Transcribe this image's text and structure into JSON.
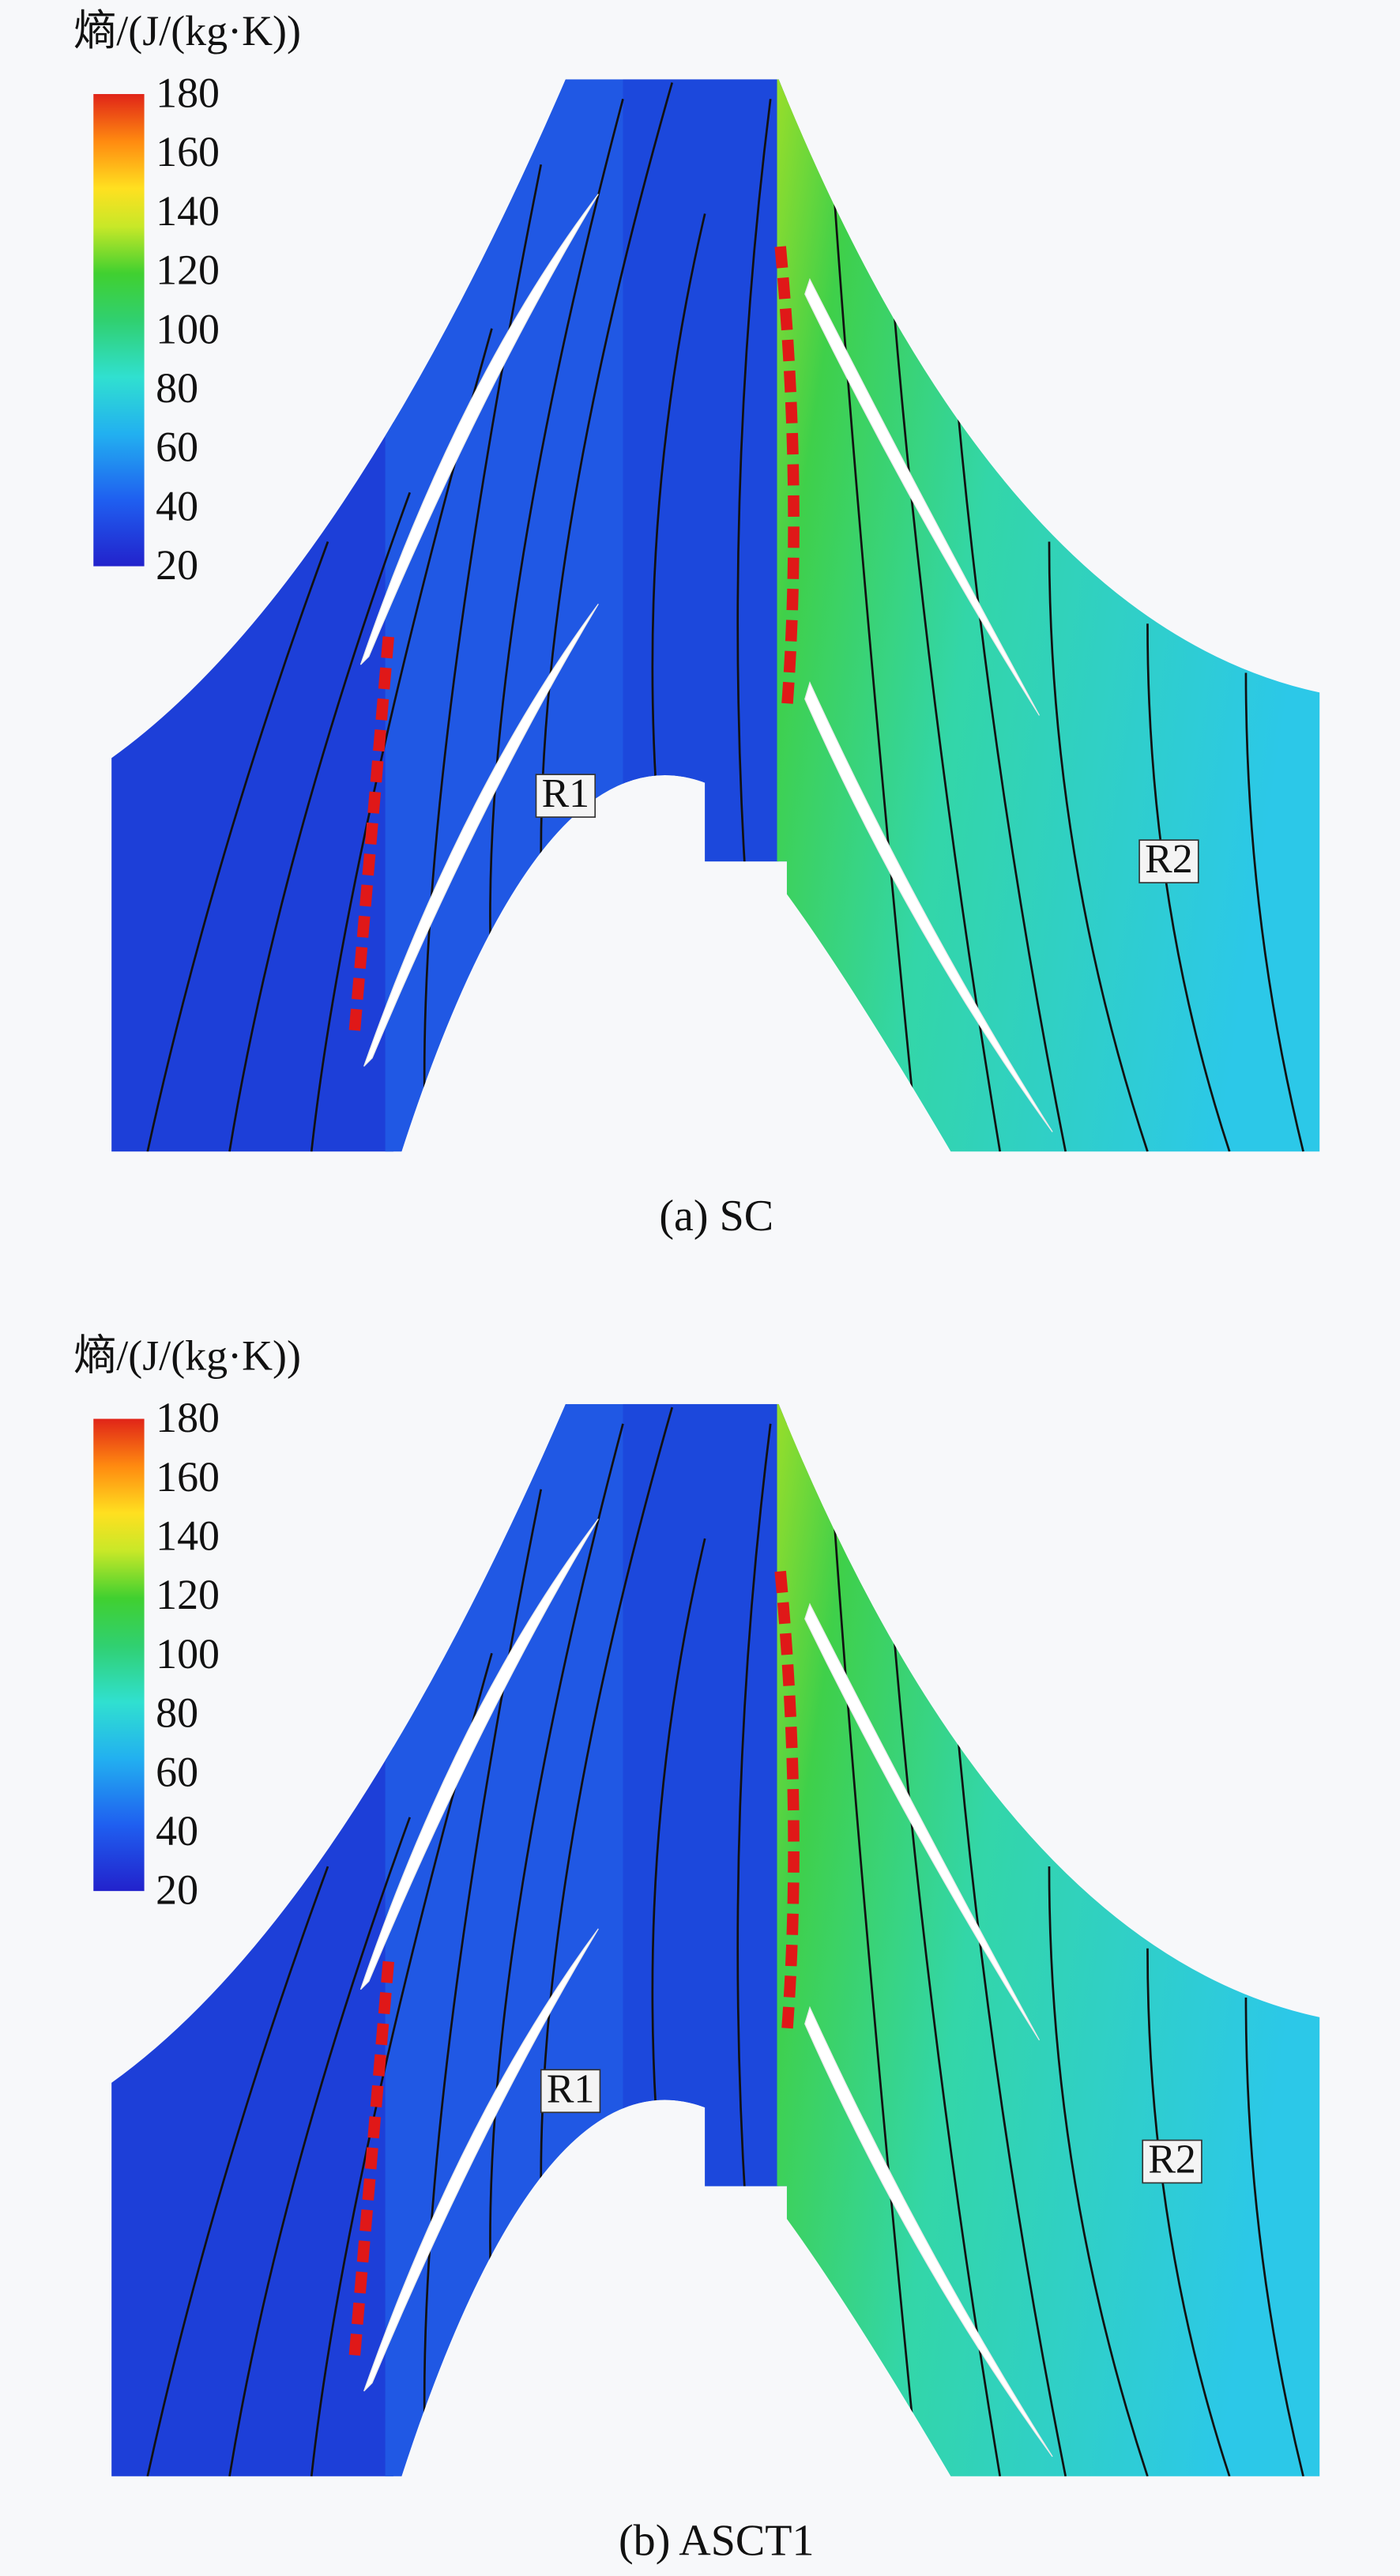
{
  "panels": [
    {
      "colorbar": {
        "title": "熵/(J/(kg·K))",
        "ticks": [
          180,
          160,
          140,
          120,
          100,
          80,
          60,
          40,
          20
        ]
      },
      "labels": [
        "R1",
        "R2"
      ],
      "caption": "(a) SC"
    },
    {
      "colorbar": {
        "title": "熵/(J/(kg·K))",
        "ticks": [
          180,
          160,
          140,
          120,
          100,
          80,
          60,
          40,
          20
        ]
      },
      "labels": [
        "R1",
        "R2"
      ],
      "caption": "(b) ASCT1"
    }
  ]
}
